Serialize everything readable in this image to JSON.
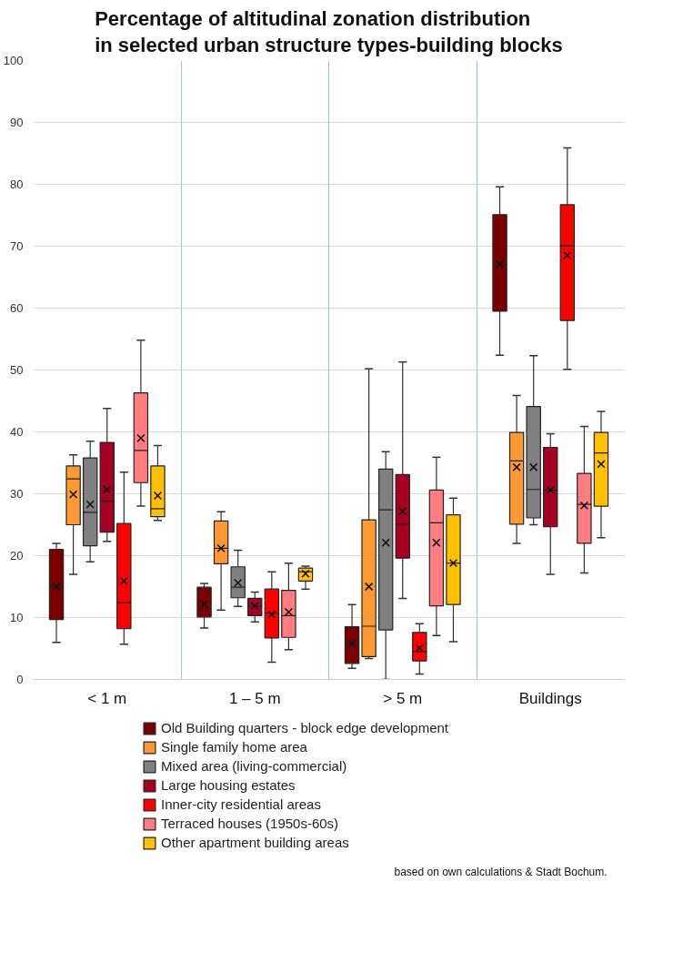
{
  "chart_data": {
    "type": "box",
    "title": "Percentage of altitudinal zonation distribution\nin selected urban structure types-building blocks",
    "categories": [
      "< 1 m",
      "1 – 5 m",
      "> 5 m",
      "Buildings"
    ],
    "ylim": [
      0,
      100
    ],
    "yticks": [
      0,
      10,
      20,
      30,
      40,
      50,
      60,
      70,
      80,
      90,
      100
    ],
    "grid": true,
    "legend": "bottom",
    "marker": "cross",
    "annotations": [
      "based on own calculations & Stadt Bochum."
    ],
    "series": [
      {
        "name": "Old Building quarters - block edge development",
        "color": "#7b0000",
        "boxes": [
          {
            "low": 6,
            "q1": 9.7,
            "median": 15,
            "q3": 21,
            "high": 22,
            "mean": 15
          },
          {
            "low": 8.3,
            "q1": 10.1,
            "median": 11.4,
            "q3": 14.9,
            "high": 15.5,
            "mean": 12.2
          },
          {
            "low": 1.8,
            "q1": 2.6,
            "median": 5.8,
            "q3": 8.5,
            "high": 12.1,
            "mean": 5.8
          },
          {
            "low": 52.4,
            "q1": 59.5,
            "median": 67.1,
            "q3": 75.1,
            "high": 79.6,
            "mean": 67.1
          }
        ]
      },
      {
        "name": "Single family home area",
        "color": "#ff9933",
        "boxes": [
          {
            "low": 17,
            "q1": 25,
            "median": 32.4,
            "q3": 34.5,
            "high": 36.3,
            "mean": 29.9
          },
          {
            "low": 11.2,
            "q1": 18.7,
            "median": 21.2,
            "q3": 25.6,
            "high": 27.1,
            "mean": 21.2
          },
          {
            "low": 3.4,
            "q1": 3.7,
            "median": 8.6,
            "q3": 25.8,
            "high": 50.2,
            "mean": 15
          },
          {
            "low": 22,
            "q1": 25.1,
            "median": 35.3,
            "q3": 39.9,
            "high": 45.9,
            "mean": 34.3
          }
        ]
      },
      {
        "name": "Mixed area (living-commercial)",
        "color": "#808080",
        "boxes": [
          {
            "low": 19,
            "q1": 21.6,
            "median": 27,
            "q3": 35.8,
            "high": 38.5,
            "mean": 28.3
          },
          {
            "low": 11.8,
            "q1": 13.2,
            "median": 14.9,
            "q3": 18.2,
            "high": 20.9,
            "mean": 15.6
          },
          {
            "low": 0,
            "q1": 8,
            "median": 27.4,
            "q3": 34,
            "high": 36.8,
            "mean": 22.1
          },
          {
            "low": 25,
            "q1": 26.1,
            "median": 30.7,
            "q3": 44.1,
            "high": 52.3,
            "mean": 34.3
          }
        ]
      },
      {
        "name": "Large housing estates",
        "color": "#a50021",
        "boxes": [
          {
            "low": 22.3,
            "q1": 23.8,
            "median": 28.8,
            "q3": 38.3,
            "high": 43.8,
            "mean": 30.7
          },
          {
            "low": 9.3,
            "q1": 10.3,
            "median": 11.9,
            "q3": 13.1,
            "high": 14.1,
            "mean": 11.9
          },
          {
            "low": 13.1,
            "q1": 19.6,
            "median": 25.1,
            "q3": 33.1,
            "high": 51.3,
            "mean": 27.2
          },
          {
            "low": 17,
            "q1": 24.7,
            "median": 30.6,
            "q3": 37.5,
            "high": 39.7,
            "mean": 30.6
          }
        ]
      },
      {
        "name": "Inner-city residential areas",
        "color": "#ff0000",
        "boxes": [
          {
            "low": 5.7,
            "q1": 8.2,
            "median": 12.4,
            "q3": 25.2,
            "high": 33.5,
            "mean": 15.9
          },
          {
            "low": 2.8,
            "q1": 6.7,
            "median": 10.7,
            "q3": 14.6,
            "high": 17.4,
            "mean": 10.5
          },
          {
            "low": 0.9,
            "q1": 3,
            "median": 4.5,
            "q3": 7.6,
            "high": 9,
            "mean": 5.1
          },
          {
            "low": 50.1,
            "q1": 58,
            "median": 70.1,
            "q3": 76.7,
            "high": 85.9,
            "mean": 68.5
          }
        ]
      },
      {
        "name": "Terraced houses (1950s-60s)",
        "color": "#ff7c80",
        "boxes": [
          {
            "low": 28,
            "q1": 31.8,
            "median": 37,
            "q3": 46.3,
            "high": 54.8,
            "mean": 39
          },
          {
            "low": 4.8,
            "q1": 6.8,
            "median": 10.3,
            "q3": 14.4,
            "high": 18.8,
            "mean": 10.9
          },
          {
            "low": 7.1,
            "q1": 11.9,
            "median": 25.3,
            "q3": 30.6,
            "high": 35.9,
            "mean": 22.1
          },
          {
            "low": 17.2,
            "q1": 22,
            "median": 28.3,
            "q3": 33.3,
            "high": 40.9,
            "mean": 28.1
          }
        ]
      },
      {
        "name": "Other apartment building areas",
        "color": "#ffc000",
        "boxes": [
          {
            "low": 25.7,
            "q1": 26.3,
            "median": 27.6,
            "q3": 34.5,
            "high": 37.8,
            "mean": 29.7
          },
          {
            "low": 14.6,
            "q1": 15.9,
            "median": 17.4,
            "q3": 18,
            "high": 18.3,
            "mean": 17.1
          },
          {
            "low": 6.1,
            "q1": 12.1,
            "median": 18.8,
            "q3": 26.6,
            "high": 29.3,
            "mean": 18.8
          },
          {
            "low": 22.9,
            "q1": 28,
            "median": 36.6,
            "q3": 39.9,
            "high": 43.3,
            "mean": 34.8
          }
        ]
      }
    ]
  }
}
